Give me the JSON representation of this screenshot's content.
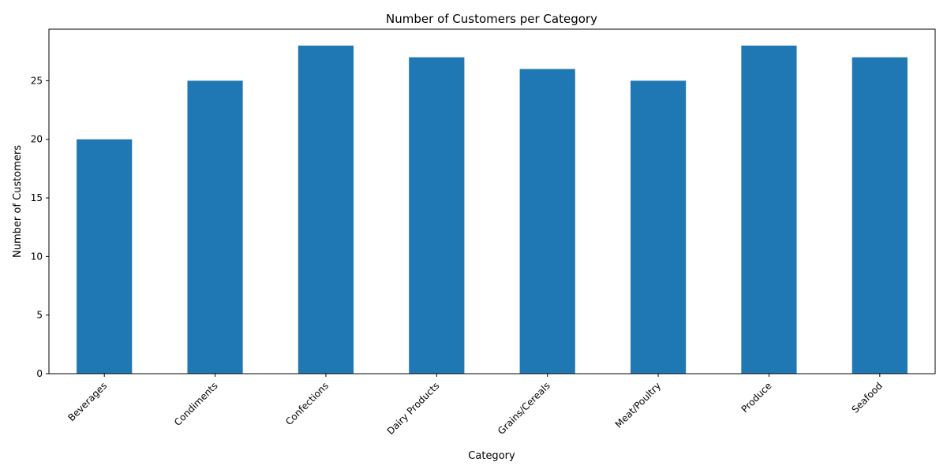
{
  "chart_data": {
    "type": "bar",
    "title": "Number of Customers per Category",
    "xlabel": "Category",
    "ylabel": "Number of Customers",
    "categories": [
      "Beverages",
      "Condiments",
      "Confections",
      "Dairy Products",
      "Grains/Cereals",
      "Meat/Poultry",
      "Produce",
      "Seafood"
    ],
    "values": [
      20,
      25,
      28,
      27,
      26,
      25,
      28,
      27
    ],
    "ylim": [
      0,
      29.4
    ],
    "yticks": [
      "0",
      "5",
      "10",
      "15",
      "20",
      "25"
    ],
    "grid": false,
    "legend": "none",
    "bar_color": "#1f77b4",
    "xtick_rotation_deg": 45
  }
}
